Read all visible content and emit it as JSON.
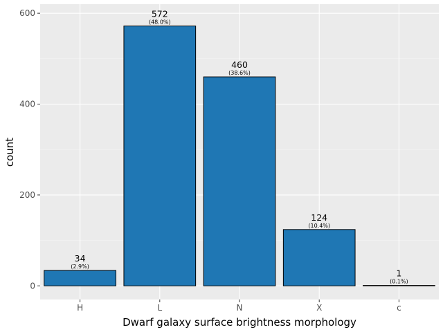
{
  "chart_data": {
    "type": "bar",
    "title": "",
    "xlabel": "Dwarf galaxy surface brightness morphology",
    "ylabel": "count",
    "categories": [
      "H",
      "L",
      "N",
      "X",
      "c"
    ],
    "values": [
      34,
      572,
      460,
      124,
      1
    ],
    "percent_labels": [
      "(2.9%)",
      "(48.0%)",
      "(38.6%)",
      "(10.4%)",
      "(0.1%)"
    ],
    "ylim": [
      -30,
      620
    ],
    "yticks": [
      0,
      200,
      400,
      600
    ],
    "grid": true,
    "legend": "none",
    "colors": {
      "bar_fill": "#1f77b4",
      "bar_stroke": "#000000",
      "panel_bg": "#ebebeb",
      "grid_major": "#ffffff",
      "grid_minor": "#f5f5f5"
    }
  }
}
